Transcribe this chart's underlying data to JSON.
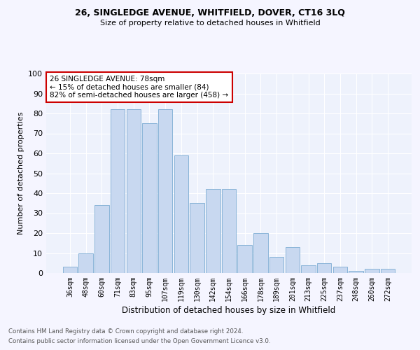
{
  "title1": "26, SINGLEDGE AVENUE, WHITFIELD, DOVER, CT16 3LQ",
  "title2": "Size of property relative to detached houses in Whitfield",
  "xlabel": "Distribution of detached houses by size in Whitfield",
  "ylabel": "Number of detached properties",
  "categories": [
    "36sqm",
    "48sqm",
    "60sqm",
    "71sqm",
    "83sqm",
    "95sqm",
    "107sqm",
    "119sqm",
    "130sqm",
    "142sqm",
    "154sqm",
    "166sqm",
    "178sqm",
    "189sqm",
    "201sqm",
    "213sqm",
    "225sqm",
    "237sqm",
    "248sqm",
    "260sqm",
    "272sqm"
  ],
  "values": [
    3,
    10,
    34,
    82,
    82,
    75,
    82,
    59,
    35,
    42,
    42,
    14,
    20,
    8,
    13,
    4,
    5,
    3,
    1,
    2,
    2
  ],
  "bar_color": "#c8d8f0",
  "bar_edge_color": "#8ab4d8",
  "background_color": "#eef2fc",
  "grid_color": "#ffffff",
  "annotation_box_text": "26 SINGLEDGE AVENUE: 78sqm\n← 15% of detached houses are smaller (84)\n82% of semi-detached houses are larger (458) →",
  "annotation_box_color": "#cc0000",
  "footnote1": "Contains HM Land Registry data © Crown copyright and database right 2024.",
  "footnote2": "Contains public sector information licensed under the Open Government Licence v3.0.",
  "ylim": [
    0,
    100
  ],
  "yticks": [
    0,
    10,
    20,
    30,
    40,
    50,
    60,
    70,
    80,
    90,
    100
  ]
}
